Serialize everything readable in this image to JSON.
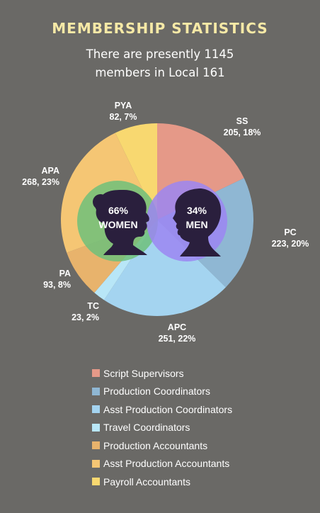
{
  "title": "MEMBERSHIP STATISTICS",
  "subtitle_lines": [
    "There are presently 1145",
    "members in Local 161"
  ],
  "chart_data": {
    "type": "pie",
    "slices": [
      {
        "abbr": "SS",
        "name": "Script Supervisors",
        "value": 205,
        "pct": "18%",
        "color": "#e59988"
      },
      {
        "abbr": "PC",
        "name": "Production Coordinators",
        "value": 223,
        "pct": "20%",
        "color": "#8fb7d3"
      },
      {
        "abbr": "APC",
        "name": "Asst Production Coordinators",
        "value": 251,
        "pct": "22%",
        "color": "#a4d4f0"
      },
      {
        "abbr": "TC",
        "name": "Travel Coordinators",
        "value": 23,
        "pct": "2%",
        "color": "#b8e6f7"
      },
      {
        "abbr": "PA",
        "name": "Production Accountants",
        "value": 93,
        "pct": "8%",
        "color": "#e8b36c"
      },
      {
        "abbr": "APA",
        "name": "Asst Production Accountants",
        "value": 268,
        "pct": "23%",
        "color": "#f5c674"
      },
      {
        "abbr": "PYA",
        "name": "Payroll Accountants",
        "value": 82,
        "pct": "7%",
        "color": "#f8d870"
      }
    ],
    "gender": [
      {
        "pct": "66%",
        "label": "WOMEN",
        "color": "#6fbf7a"
      },
      {
        "pct": "34%",
        "label": "MEN",
        "color": "#9c86f2"
      }
    ]
  }
}
